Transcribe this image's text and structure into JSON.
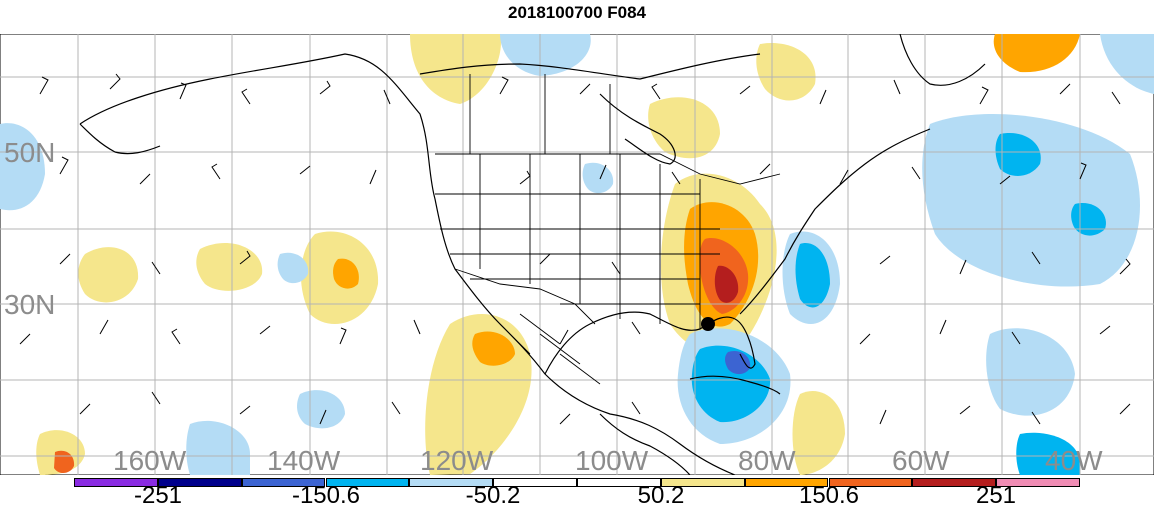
{
  "title": "2018100700 F084",
  "map": {
    "lat_labels": [
      "50N",
      "30N"
    ],
    "lon_labels": [
      "160W",
      "140W",
      "120W",
      "100W",
      "80W",
      "60W",
      "40W"
    ]
  },
  "colorbar": {
    "colors": [
      "#8a2be2",
      "#00008b",
      "#3c64d2",
      "#00b4f0",
      "#b4dcf5",
      "#ffffff",
      "#ffffff",
      "#f5e68c",
      "#ffa500",
      "#f0641e",
      "#b41e1e",
      "#f08cb4"
    ],
    "labels": [
      "-251",
      "-150.6",
      "-50.2",
      "50.2",
      "150.6",
      "251"
    ]
  }
}
